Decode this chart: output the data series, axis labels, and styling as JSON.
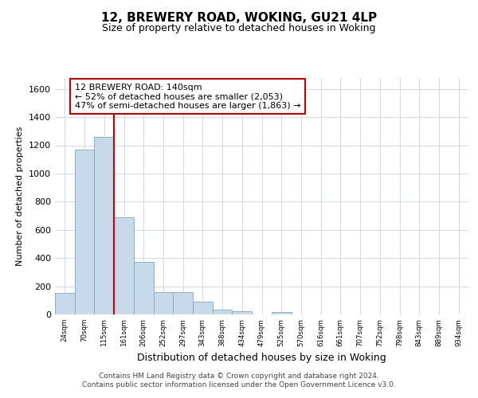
{
  "title1": "12, BREWERY ROAD, WOKING, GU21 4LP",
  "title2": "Size of property relative to detached houses in Woking",
  "xlabel": "Distribution of detached houses by size in Woking",
  "ylabel": "Number of detached properties",
  "footer1": "Contains HM Land Registry data © Crown copyright and database right 2024.",
  "footer2": "Contains public sector information licensed under the Open Government Licence v3.0.",
  "bin_labels": [
    "24sqm",
    "70sqm",
    "115sqm",
    "161sqm",
    "206sqm",
    "252sqm",
    "297sqm",
    "343sqm",
    "388sqm",
    "434sqm",
    "479sqm",
    "525sqm",
    "570sqm",
    "616sqm",
    "661sqm",
    "707sqm",
    "752sqm",
    "798sqm",
    "843sqm",
    "889sqm",
    "934sqm"
  ],
  "bar_values": [
    150,
    1170,
    1260,
    690,
    375,
    160,
    160,
    90,
    35,
    25,
    0,
    15,
    0,
    0,
    0,
    0,
    0,
    0,
    0,
    0,
    0
  ],
  "bar_color": "#c8d9ea",
  "bar_edge_color": "#7aa8c8",
  "grid_color": "#d0d8e4",
  "property_line_color": "#cc0000",
  "property_line_x": 2.5,
  "annotation_text": "12 BREWERY ROAD: 140sqm\n← 52% of detached houses are smaller (2,053)\n47% of semi-detached houses are larger (1,863) →",
  "annotation_box_color": "#cc0000",
  "ylim": [
    0,
    1680
  ],
  "yticks": [
    0,
    200,
    400,
    600,
    800,
    1000,
    1200,
    1400,
    1600
  ],
  "background_color": "#ffffff",
  "plot_background_color": "#ffffff"
}
